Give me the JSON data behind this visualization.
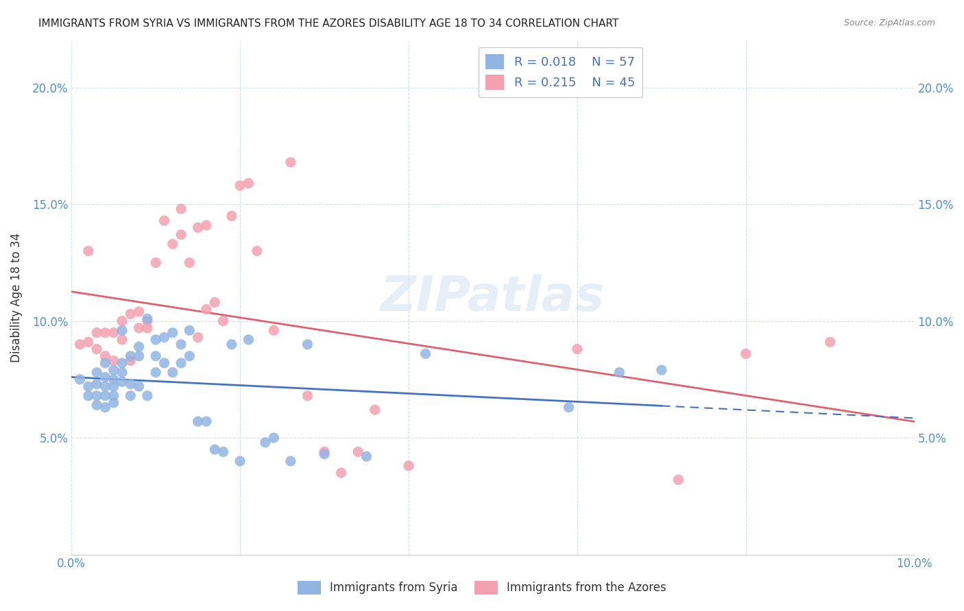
{
  "title": "IMMIGRANTS FROM SYRIA VS IMMIGRANTS FROM THE AZORES DISABILITY AGE 18 TO 34 CORRELATION CHART",
  "source": "Source: ZipAtlas.com",
  "ylabel": "Disability Age 18 to 34",
  "xlim": [
    0.0,
    0.1
  ],
  "ylim": [
    0.0,
    0.22
  ],
  "syria_color": "#92b4e3",
  "azores_color": "#f4a0b0",
  "syria_line_color": "#4472c4",
  "azores_line_color": "#e06070",
  "legend_text_color": "#4472c4",
  "background_color": "#ffffff",
  "grid_color": "#c8d8e8",
  "watermark": "ZIPatlas",
  "R_syria": 0.018,
  "N_syria": 57,
  "R_azores": 0.215,
  "N_azores": 45,
  "syria_x": [
    0.001,
    0.002,
    0.002,
    0.003,
    0.003,
    0.003,
    0.003,
    0.004,
    0.004,
    0.004,
    0.004,
    0.004,
    0.005,
    0.005,
    0.005,
    0.005,
    0.005,
    0.006,
    0.006,
    0.006,
    0.006,
    0.007,
    0.007,
    0.007,
    0.008,
    0.008,
    0.008,
    0.009,
    0.009,
    0.01,
    0.01,
    0.01,
    0.011,
    0.011,
    0.012,
    0.012,
    0.013,
    0.013,
    0.014,
    0.014,
    0.015,
    0.016,
    0.017,
    0.018,
    0.019,
    0.02,
    0.021,
    0.023,
    0.024,
    0.026,
    0.028,
    0.03,
    0.035,
    0.042,
    0.059,
    0.065,
    0.07
  ],
  "syria_y": [
    0.075,
    0.072,
    0.068,
    0.078,
    0.073,
    0.068,
    0.064,
    0.082,
    0.076,
    0.072,
    0.068,
    0.063,
    0.079,
    0.075,
    0.072,
    0.068,
    0.065,
    0.096,
    0.082,
    0.078,
    0.074,
    0.085,
    0.073,
    0.068,
    0.089,
    0.085,
    0.072,
    0.101,
    0.068,
    0.092,
    0.085,
    0.078,
    0.093,
    0.082,
    0.095,
    0.078,
    0.09,
    0.082,
    0.096,
    0.085,
    0.057,
    0.057,
    0.045,
    0.044,
    0.09,
    0.04,
    0.092,
    0.048,
    0.05,
    0.04,
    0.09,
    0.043,
    0.042,
    0.086,
    0.063,
    0.078,
    0.079
  ],
  "azores_x": [
    0.001,
    0.002,
    0.002,
    0.003,
    0.003,
    0.004,
    0.004,
    0.005,
    0.005,
    0.006,
    0.006,
    0.007,
    0.007,
    0.008,
    0.008,
    0.009,
    0.009,
    0.01,
    0.011,
    0.012,
    0.013,
    0.013,
    0.014,
    0.015,
    0.015,
    0.016,
    0.016,
    0.017,
    0.018,
    0.019,
    0.02,
    0.021,
    0.022,
    0.024,
    0.026,
    0.028,
    0.03,
    0.032,
    0.034,
    0.036,
    0.04,
    0.06,
    0.072,
    0.08,
    0.09
  ],
  "azores_y": [
    0.09,
    0.13,
    0.091,
    0.088,
    0.095,
    0.085,
    0.095,
    0.083,
    0.095,
    0.092,
    0.1,
    0.083,
    0.103,
    0.097,
    0.104,
    0.097,
    0.1,
    0.125,
    0.143,
    0.133,
    0.148,
    0.137,
    0.125,
    0.14,
    0.093,
    0.105,
    0.141,
    0.108,
    0.1,
    0.145,
    0.158,
    0.159,
    0.13,
    0.096,
    0.168,
    0.068,
    0.044,
    0.035,
    0.044,
    0.062,
    0.038,
    0.088,
    0.032,
    0.086,
    0.091
  ]
}
